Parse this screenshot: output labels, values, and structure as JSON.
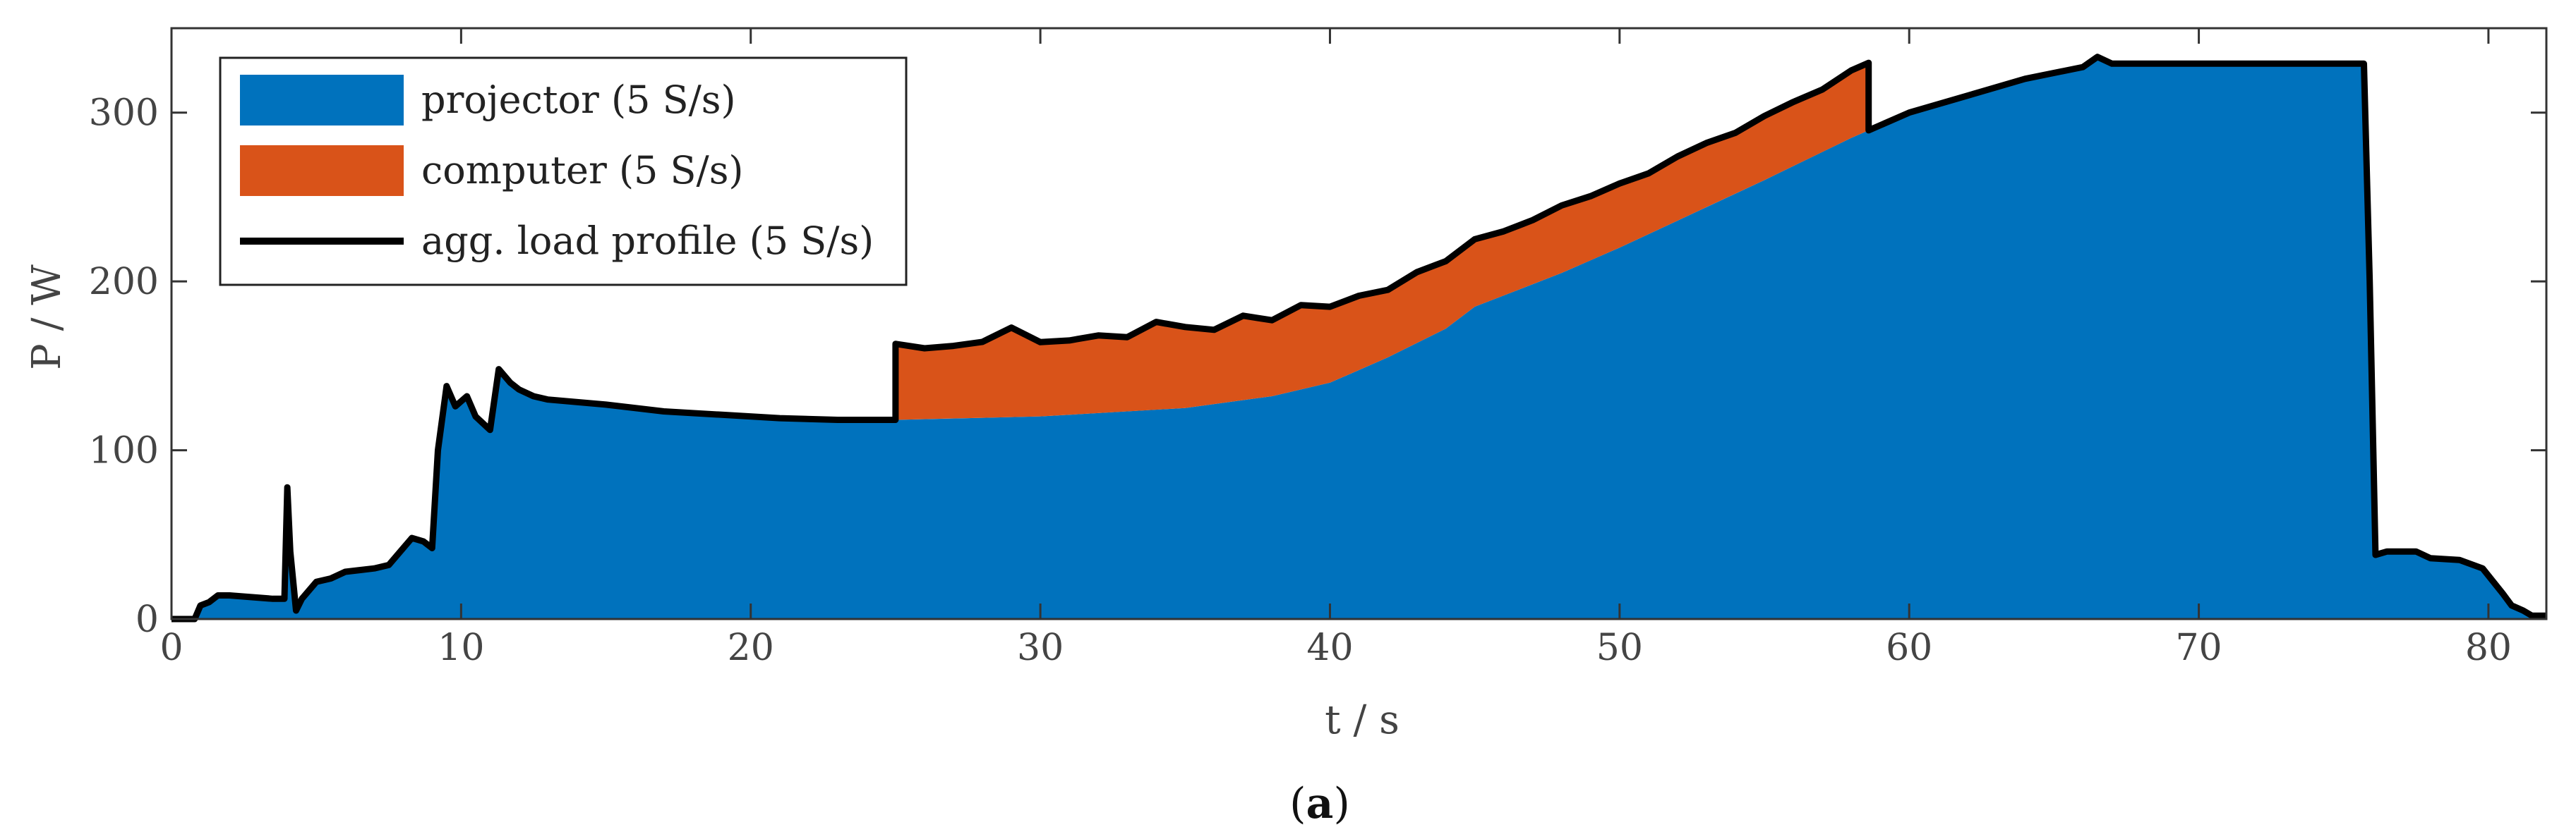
{
  "chart_data": {
    "type": "area",
    "xlabel": "t / s",
    "ylabel": "P / W",
    "xlim": [
      0,
      82
    ],
    "ylim": [
      0,
      350
    ],
    "xticks": [
      0,
      10,
      20,
      30,
      40,
      50,
      60,
      70,
      80
    ],
    "yticks": [
      0,
      100,
      200,
      300
    ],
    "grid": false,
    "legend_position": "top-left",
    "panel_label": {
      "open": "(",
      "letter": "a",
      "close": ")"
    },
    "colors": {
      "projector": "#0072BD",
      "computer": "#D95319",
      "aggregate": "#000000"
    },
    "series": [
      {
        "name": "projector (5 S/s)",
        "kind": "area",
        "x": [
          0,
          0.8,
          1.0,
          1.3,
          1.6,
          2.0,
          3.5,
          3.9,
          4.0,
          4.1,
          4.3,
          4.5,
          5.0,
          5.5,
          6.0,
          7.0,
          7.5,
          8.0,
          8.3,
          8.7,
          9.0,
          9.2,
          9.5,
          9.8,
          10.2,
          10.5,
          11.0,
          11.3,
          11.7,
          12.0,
          12.5,
          13.0,
          15.0,
          17.0,
          19.0,
          21.0,
          23.0,
          25.0,
          30.0,
          35.0,
          38.0,
          40.0,
          42.0,
          44.0,
          45.0,
          48.0,
          50.0,
          52.0,
          55.0,
          58.0,
          60.0,
          62.0,
          64.0,
          66.0,
          66.5,
          67.0,
          70.0,
          75.0,
          75.7,
          75.9,
          76.1,
          76.5,
          77.5,
          78.0,
          79.0,
          79.8,
          80.5,
          80.8,
          81.2,
          81.5,
          82.0
        ],
        "y": [
          0,
          0,
          8,
          10,
          14,
          14,
          12,
          12,
          78,
          40,
          5,
          12,
          22,
          24,
          28,
          30,
          32,
          42,
          48,
          46,
          42,
          100,
          138,
          126,
          132,
          120,
          112,
          148,
          140,
          136,
          132,
          130,
          127,
          123,
          121,
          119,
          118,
          118,
          120,
          125,
          132,
          140,
          155,
          172,
          185,
          205,
          220,
          236,
          260,
          285,
          300,
          310,
          320,
          327,
          333,
          329,
          329,
          329,
          329,
          200,
          38,
          40,
          40,
          36,
          35,
          30,
          15,
          8,
          5,
          2,
          2
        ]
      },
      {
        "name": "computer (5 S/s)",
        "kind": "area",
        "x": [
          25,
          26,
          27,
          28,
          29,
          30,
          31,
          32,
          33,
          34,
          35,
          36,
          37,
          38,
          39,
          40,
          41,
          42,
          43,
          44,
          45,
          46,
          47,
          48,
          49,
          50,
          51,
          52,
          53,
          54,
          55,
          56,
          57,
          58,
          58.6
        ],
        "y": [
          45,
          42,
          43,
          45,
          53,
          44,
          44,
          46,
          44,
          52,
          48,
          44,
          50,
          45,
          50,
          45,
          44,
          40,
          42,
          40,
          40,
          38,
          38,
          40,
          38,
          38,
          36,
          38,
          38,
          36,
          38,
          38,
          37,
          40,
          40
        ]
      },
      {
        "name": "agg. load profile (5 S/s)",
        "kind": "line"
      }
    ]
  }
}
